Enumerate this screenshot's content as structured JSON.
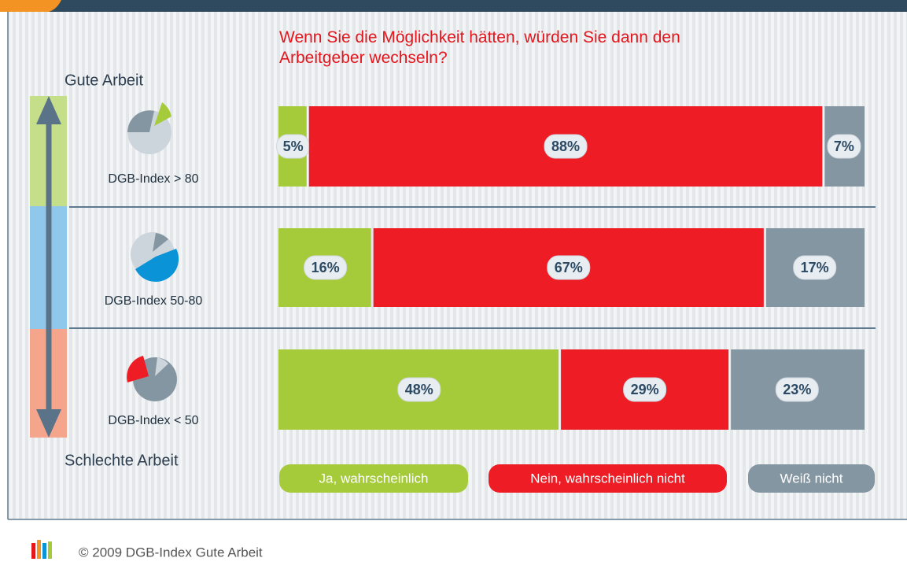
{
  "chart_data": {
    "type": "bar",
    "orientation": "horizontal",
    "stacked": true,
    "title": "Wenn Sie die Möglichkeit hätten, würden Sie dann den Arbeitgeber wechseln?",
    "annotations": [
      "Gute Arbeit",
      "Schlechte Arbeit"
    ],
    "categories": [
      "DGB-Index > 80",
      "DGB-Index 50-80",
      "DGB-Index < 50"
    ],
    "series": [
      {
        "name": "Ja, wahrscheinlich",
        "color": "#a6cb3a",
        "values": [
          5,
          16,
          48
        ],
        "value_labels": [
          "5%",
          "16%",
          "48%"
        ]
      },
      {
        "name": "Nein, wahrscheinlich nicht",
        "color": "#ee1c25",
        "values": [
          88,
          67,
          29
        ],
        "value_labels": [
          "88%",
          "67%",
          "29%"
        ]
      },
      {
        "name": "Weiß nicht",
        "color": "#8596a3",
        "values": [
          7,
          17,
          23
        ],
        "value_labels": [
          "7%",
          "17%",
          "23%"
        ]
      }
    ],
    "source": "© 2009 DGB-Index Gute Arbeit"
  }
}
